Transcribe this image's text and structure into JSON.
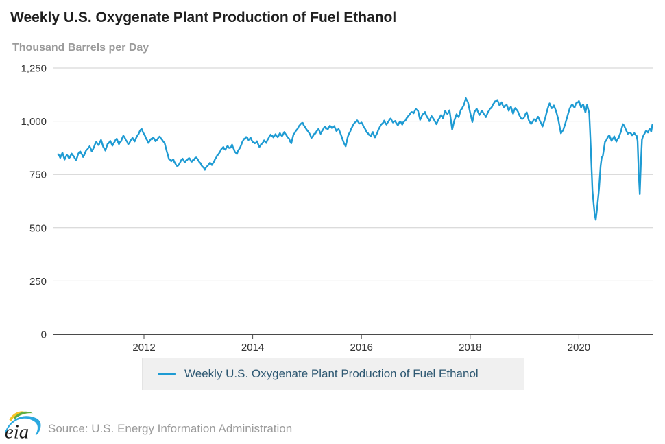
{
  "page": {
    "background": "#ffffff"
  },
  "header": {
    "title": "Weekly U.S. Oxygenate Plant Production of Fuel Ethanol",
    "subtitle": "Thousand Barrels per Day"
  },
  "legend": {
    "swatch_color": "#1e9bd3",
    "label": "Weekly U.S. Oxygenate Plant Production of Fuel Ethanol"
  },
  "footer": {
    "logo_text": "eia",
    "source": "Source: U.S. Energy Information Administration"
  },
  "colors": {
    "line": "#1e9bd3",
    "grid": "#cfcfcf",
    "axis": "#4a4a4a",
    "tick_label": "#333333",
    "title": "#1f1f1f",
    "subtitle": "#9b9b9b",
    "legend_bg": "#f0f0f0",
    "legend_text": "#2e5872",
    "source_text": "#9b9b9b"
  },
  "chart_data": {
    "type": "line",
    "title": "Weekly U.S. Oxygenate Plant Production of Fuel Ethanol",
    "ylabel": "Thousand Barrels per Day",
    "xlabel": "",
    "ylim": [
      0,
      1250
    ],
    "xlim": [
      2010.35,
      2021.4
    ],
    "grid": "horizontal",
    "legend_position": "bottom",
    "y_ticks": [
      0,
      250,
      500,
      750,
      1000,
      1250
    ],
    "y_tick_labels": [
      "0",
      "250",
      "500",
      "750",
      "1,000",
      "1,250"
    ],
    "x_ticks": [
      2012,
      2014,
      2016,
      2018,
      2020
    ],
    "x_tick_labels": [
      "2012",
      "2014",
      "2016",
      "2018",
      "2020"
    ],
    "series": [
      {
        "name": "Weekly U.S. Oxygenate Plant Production of Fuel Ethanol",
        "color": "#1e9bd3",
        "unit": "thousand barrels per day",
        "frequency": "weekly",
        "points": [
          [
            2010.42,
            845
          ],
          [
            2010.46,
            828
          ],
          [
            2010.5,
            852
          ],
          [
            2010.54,
            820
          ],
          [
            2010.58,
            842
          ],
          [
            2010.62,
            826
          ],
          [
            2010.67,
            848
          ],
          [
            2010.71,
            835
          ],
          [
            2010.75,
            818
          ],
          [
            2010.79,
            846
          ],
          [
            2010.83,
            858
          ],
          [
            2010.88,
            832
          ],
          [
            2010.92,
            854
          ],
          [
            2010.96,
            868
          ],
          [
            2011.0,
            882
          ],
          [
            2011.04,
            858
          ],
          [
            2011.08,
            878
          ],
          [
            2011.12,
            902
          ],
          [
            2011.17,
            888
          ],
          [
            2011.21,
            912
          ],
          [
            2011.25,
            880
          ],
          [
            2011.29,
            862
          ],
          [
            2011.33,
            893
          ],
          [
            2011.38,
            908
          ],
          [
            2011.42,
            885
          ],
          [
            2011.46,
            903
          ],
          [
            2011.5,
            918
          ],
          [
            2011.54,
            892
          ],
          [
            2011.58,
            906
          ],
          [
            2011.62,
            932
          ],
          [
            2011.67,
            910
          ],
          [
            2011.71,
            892
          ],
          [
            2011.75,
            908
          ],
          [
            2011.79,
            922
          ],
          [
            2011.83,
            905
          ],
          [
            2011.88,
            933
          ],
          [
            2011.92,
            952
          ],
          [
            2011.96,
            963
          ],
          [
            2012.0,
            940
          ],
          [
            2012.04,
            918
          ],
          [
            2012.08,
            898
          ],
          [
            2012.12,
            914
          ],
          [
            2012.17,
            924
          ],
          [
            2012.21,
            906
          ],
          [
            2012.25,
            916
          ],
          [
            2012.29,
            928
          ],
          [
            2012.33,
            914
          ],
          [
            2012.38,
            898
          ],
          [
            2012.42,
            858
          ],
          [
            2012.46,
            822
          ],
          [
            2012.5,
            812
          ],
          [
            2012.54,
            821
          ],
          [
            2012.58,
            800
          ],
          [
            2012.62,
            790
          ],
          [
            2012.67,
            809
          ],
          [
            2012.71,
            824
          ],
          [
            2012.75,
            806
          ],
          [
            2012.79,
            816
          ],
          [
            2012.83,
            827
          ],
          [
            2012.88,
            810
          ],
          [
            2012.92,
            819
          ],
          [
            2012.96,
            830
          ],
          [
            2013.0,
            816
          ],
          [
            2013.04,
            803
          ],
          [
            2013.08,
            786
          ],
          [
            2013.12,
            772
          ],
          [
            2013.17,
            790
          ],
          [
            2013.21,
            804
          ],
          [
            2013.25,
            794
          ],
          [
            2013.29,
            811
          ],
          [
            2013.33,
            830
          ],
          [
            2013.38,
            849
          ],
          [
            2013.42,
            868
          ],
          [
            2013.46,
            879
          ],
          [
            2013.5,
            866
          ],
          [
            2013.54,
            884
          ],
          [
            2013.58,
            874
          ],
          [
            2013.62,
            890
          ],
          [
            2013.67,
            857
          ],
          [
            2013.71,
            846
          ],
          [
            2013.75,
            869
          ],
          [
            2013.79,
            889
          ],
          [
            2013.83,
            912
          ],
          [
            2013.88,
            926
          ],
          [
            2013.92,
            912
          ],
          [
            2013.96,
            924
          ],
          [
            2014.0,
            902
          ],
          [
            2014.04,
            896
          ],
          [
            2014.08,
            906
          ],
          [
            2014.12,
            880
          ],
          [
            2014.17,
            894
          ],
          [
            2014.21,
            910
          ],
          [
            2014.25,
            898
          ],
          [
            2014.29,
            919
          ],
          [
            2014.33,
            937
          ],
          [
            2014.38,
            924
          ],
          [
            2014.42,
            939
          ],
          [
            2014.46,
            925
          ],
          [
            2014.5,
            944
          ],
          [
            2014.54,
            930
          ],
          [
            2014.58,
            949
          ],
          [
            2014.62,
            934
          ],
          [
            2014.67,
            918
          ],
          [
            2014.71,
            896
          ],
          [
            2014.75,
            938
          ],
          [
            2014.79,
            953
          ],
          [
            2014.83,
            966
          ],
          [
            2014.88,
            986
          ],
          [
            2014.92,
            992
          ],
          [
            2014.96,
            974
          ],
          [
            2015.0,
            958
          ],
          [
            2015.04,
            944
          ],
          [
            2015.08,
            921
          ],
          [
            2015.12,
            936
          ],
          [
            2015.17,
            951
          ],
          [
            2015.21,
            964
          ],
          [
            2015.25,
            941
          ],
          [
            2015.29,
            959
          ],
          [
            2015.33,
            974
          ],
          [
            2015.38,
            961
          ],
          [
            2015.42,
            979
          ],
          [
            2015.46,
            967
          ],
          [
            2015.5,
            977
          ],
          [
            2015.54,
            954
          ],
          [
            2015.58,
            964
          ],
          [
            2015.62,
            938
          ],
          [
            2015.67,
            903
          ],
          [
            2015.71,
            882
          ],
          [
            2015.75,
            928
          ],
          [
            2015.79,
            949
          ],
          [
            2015.83,
            973
          ],
          [
            2015.88,
            994
          ],
          [
            2015.92,
            1004
          ],
          [
            2015.96,
            989
          ],
          [
            2016.0,
            994
          ],
          [
            2016.04,
            974
          ],
          [
            2016.08,
            958
          ],
          [
            2016.12,
            944
          ],
          [
            2016.17,
            929
          ],
          [
            2016.21,
            949
          ],
          [
            2016.25,
            924
          ],
          [
            2016.29,
            944
          ],
          [
            2016.33,
            969
          ],
          [
            2016.38,
            988
          ],
          [
            2016.42,
            1003
          ],
          [
            2016.46,
            984
          ],
          [
            2016.5,
            999
          ],
          [
            2016.54,
            1013
          ],
          [
            2016.58,
            994
          ],
          [
            2016.62,
            1001
          ],
          [
            2016.67,
            980
          ],
          [
            2016.71,
            999
          ],
          [
            2016.75,
            984
          ],
          [
            2016.79,
            1000
          ],
          [
            2016.83,
            1014
          ],
          [
            2016.88,
            1029
          ],
          [
            2016.92,
            1043
          ],
          [
            2016.96,
            1037
          ],
          [
            2017.0,
            1058
          ],
          [
            2017.04,
            1049
          ],
          [
            2017.08,
            1006
          ],
          [
            2017.12,
            1029
          ],
          [
            2017.17,
            1043
          ],
          [
            2017.21,
            1019
          ],
          [
            2017.25,
            1000
          ],
          [
            2017.29,
            1024
          ],
          [
            2017.33,
            1009
          ],
          [
            2017.38,
            986
          ],
          [
            2017.42,
            1009
          ],
          [
            2017.46,
            1028
          ],
          [
            2017.5,
            1014
          ],
          [
            2017.54,
            1048
          ],
          [
            2017.58,
            1034
          ],
          [
            2017.62,
            1051
          ],
          [
            2017.67,
            961
          ],
          [
            2017.71,
            1004
          ],
          [
            2017.75,
            1033
          ],
          [
            2017.79,
            1019
          ],
          [
            2017.83,
            1054
          ],
          [
            2017.88,
            1074
          ],
          [
            2017.92,
            1108
          ],
          [
            2017.96,
            1089
          ],
          [
            2018.0,
            1040
          ],
          [
            2018.04,
            996
          ],
          [
            2018.08,
            1044
          ],
          [
            2018.12,
            1059
          ],
          [
            2018.17,
            1029
          ],
          [
            2018.21,
            1049
          ],
          [
            2018.25,
            1034
          ],
          [
            2018.29,
            1019
          ],
          [
            2018.33,
            1044
          ],
          [
            2018.38,
            1061
          ],
          [
            2018.42,
            1079
          ],
          [
            2018.46,
            1094
          ],
          [
            2018.5,
            1100
          ],
          [
            2018.54,
            1074
          ],
          [
            2018.58,
            1089
          ],
          [
            2018.62,
            1064
          ],
          [
            2018.67,
            1079
          ],
          [
            2018.71,
            1049
          ],
          [
            2018.75,
            1068
          ],
          [
            2018.79,
            1035
          ],
          [
            2018.83,
            1062
          ],
          [
            2018.88,
            1044
          ],
          [
            2018.92,
            1021
          ],
          [
            2018.96,
            1011
          ],
          [
            2019.0,
            1022
          ],
          [
            2019.04,
            1042
          ],
          [
            2019.08,
            1004
          ],
          [
            2019.12,
            987
          ],
          [
            2019.17,
            1009
          ],
          [
            2019.21,
            999
          ],
          [
            2019.25,
            1021
          ],
          [
            2019.29,
            997
          ],
          [
            2019.33,
            975
          ],
          [
            2019.38,
            1014
          ],
          [
            2019.42,
            1054
          ],
          [
            2019.46,
            1084
          ],
          [
            2019.5,
            1061
          ],
          [
            2019.54,
            1074
          ],
          [
            2019.58,
            1047
          ],
          [
            2019.62,
            1009
          ],
          [
            2019.67,
            943
          ],
          [
            2019.71,
            957
          ],
          [
            2019.75,
            989
          ],
          [
            2019.79,
            1024
          ],
          [
            2019.83,
            1059
          ],
          [
            2019.88,
            1079
          ],
          [
            2019.92,
            1064
          ],
          [
            2019.96,
            1089
          ],
          [
            2020.0,
            1095
          ],
          [
            2020.04,
            1064
          ],
          [
            2020.08,
            1079
          ],
          [
            2020.12,
            1041
          ],
          [
            2020.15,
            1077
          ],
          [
            2020.19,
            1038
          ],
          [
            2020.22,
            870
          ],
          [
            2020.25,
            672
          ],
          [
            2020.29,
            563
          ],
          [
            2020.31,
            537
          ],
          [
            2020.33,
            580
          ],
          [
            2020.37,
            680
          ],
          [
            2020.4,
            790
          ],
          [
            2020.42,
            830
          ],
          [
            2020.44,
            836
          ],
          [
            2020.48,
            903
          ],
          [
            2020.52,
            919
          ],
          [
            2020.56,
            934
          ],
          [
            2020.6,
            908
          ],
          [
            2020.65,
            929
          ],
          [
            2020.69,
            904
          ],
          [
            2020.73,
            921
          ],
          [
            2020.77,
            949
          ],
          [
            2020.81,
            986
          ],
          [
            2020.85,
            969
          ],
          [
            2020.9,
            941
          ],
          [
            2020.94,
            946
          ],
          [
            2020.98,
            934
          ],
          [
            2021.02,
            944
          ],
          [
            2021.06,
            933
          ],
          [
            2021.08,
            908
          ],
          [
            2021.1,
            760
          ],
          [
            2021.12,
            658
          ],
          [
            2021.14,
            800
          ],
          [
            2021.16,
            913
          ],
          [
            2021.19,
            934
          ],
          [
            2021.23,
            953
          ],
          [
            2021.27,
            947
          ],
          [
            2021.3,
            964
          ],
          [
            2021.33,
            951
          ],
          [
            2021.35,
            983
          ]
        ]
      }
    ]
  }
}
